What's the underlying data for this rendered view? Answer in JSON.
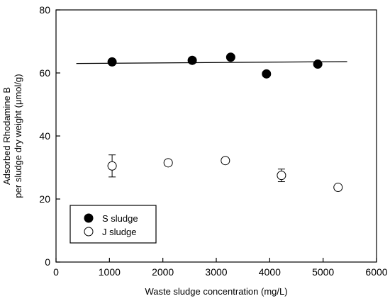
{
  "chart_data": {
    "type": "scatter",
    "title": "",
    "xlabel": "Waste sludge concentration (mg/L)",
    "ylabel_line1": "Adsorbed Rhodamine B",
    "ylabel_line2": "per sludge dry weight (μmol/g)",
    "xlim": [
      0,
      6000
    ],
    "ylim": [
      0,
      80
    ],
    "x_ticks": [
      0,
      1000,
      2000,
      3000,
      4000,
      5000,
      6000
    ],
    "y_ticks": [
      0,
      20,
      40,
      60,
      80
    ],
    "grid": false,
    "legend_position": "bottom-left",
    "series": [
      {
        "name": "S sludge",
        "marker": "filled-circle",
        "color": "#000000",
        "points": [
          {
            "x": 1050,
            "y": 63.5
          },
          {
            "x": 2550,
            "y": 64.0
          },
          {
            "x": 3270,
            "y": 65.0
          },
          {
            "x": 3940,
            "y": 59.7
          },
          {
            "x": 4900,
            "y": 62.8
          }
        ]
      },
      {
        "name": "J sludge",
        "marker": "open-circle",
        "color": "#000000",
        "points": [
          {
            "x": 1050,
            "y": 30.5,
            "err": 3.5
          },
          {
            "x": 2100,
            "y": 31.5
          },
          {
            "x": 3170,
            "y": 32.2
          },
          {
            "x": 4220,
            "y": 27.5,
            "err": 2.0
          },
          {
            "x": 5280,
            "y": 23.7
          }
        ]
      }
    ],
    "fit_line": {
      "series": "S sludge",
      "x_start": 380,
      "x_end": 5450,
      "y_start": 63.0,
      "y_end": 63.6
    }
  }
}
